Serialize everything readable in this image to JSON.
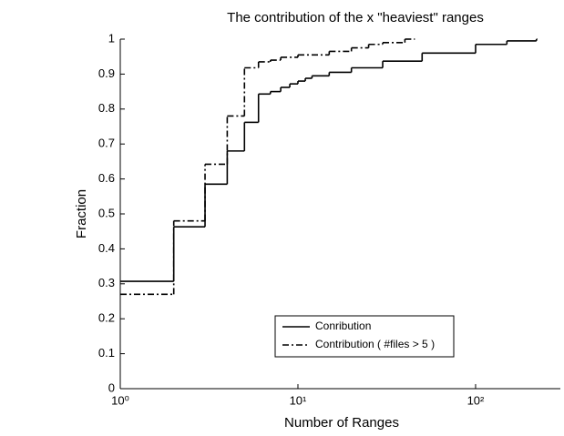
{
  "chart_data": {
    "type": "step",
    "title": "The contribution  of the x  \"heaviest\" ranges",
    "xlabel": "Number of Ranges",
    "ylabel": "Fraction",
    "xscale": "log",
    "xlim": [
      1,
      300
    ],
    "ylim": [
      0,
      1
    ],
    "xticks": [
      {
        "value": 1,
        "label": "10⁰"
      },
      {
        "value": 10,
        "label": "10¹"
      },
      {
        "value": 100,
        "label": "10²"
      }
    ],
    "yticks": [
      0,
      0.1,
      0.2,
      0.3,
      0.4,
      0.5,
      0.6,
      0.7,
      0.8,
      0.9,
      1
    ],
    "legend": "lower-right",
    "series": [
      {
        "name": "Conribution",
        "color": "#000000",
        "linestyle": "solid",
        "x": [
          1,
          2,
          3,
          4,
          5,
          6,
          7,
          8,
          9,
          10,
          11,
          12,
          15,
          20,
          30,
          50,
          100,
          150,
          220
        ],
        "values": [
          0.307,
          0.463,
          0.585,
          0.68,
          0.762,
          0.843,
          0.85,
          0.862,
          0.872,
          0.88,
          0.888,
          0.895,
          0.905,
          0.918,
          0.937,
          0.96,
          0.985,
          0.995,
          1
        ]
      },
      {
        "name": "Contribution ( #files > 5 )",
        "color": "#000000",
        "linestyle": "dashdot",
        "x": [
          1,
          2,
          3,
          4,
          5,
          6,
          7,
          8,
          10,
          15,
          20,
          25,
          30,
          40,
          45
        ],
        "values": [
          0.27,
          0.48,
          0.642,
          0.78,
          0.918,
          0.935,
          0.94,
          0.948,
          0.955,
          0.965,
          0.975,
          0.985,
          0.99,
          1,
          1
        ]
      }
    ]
  }
}
